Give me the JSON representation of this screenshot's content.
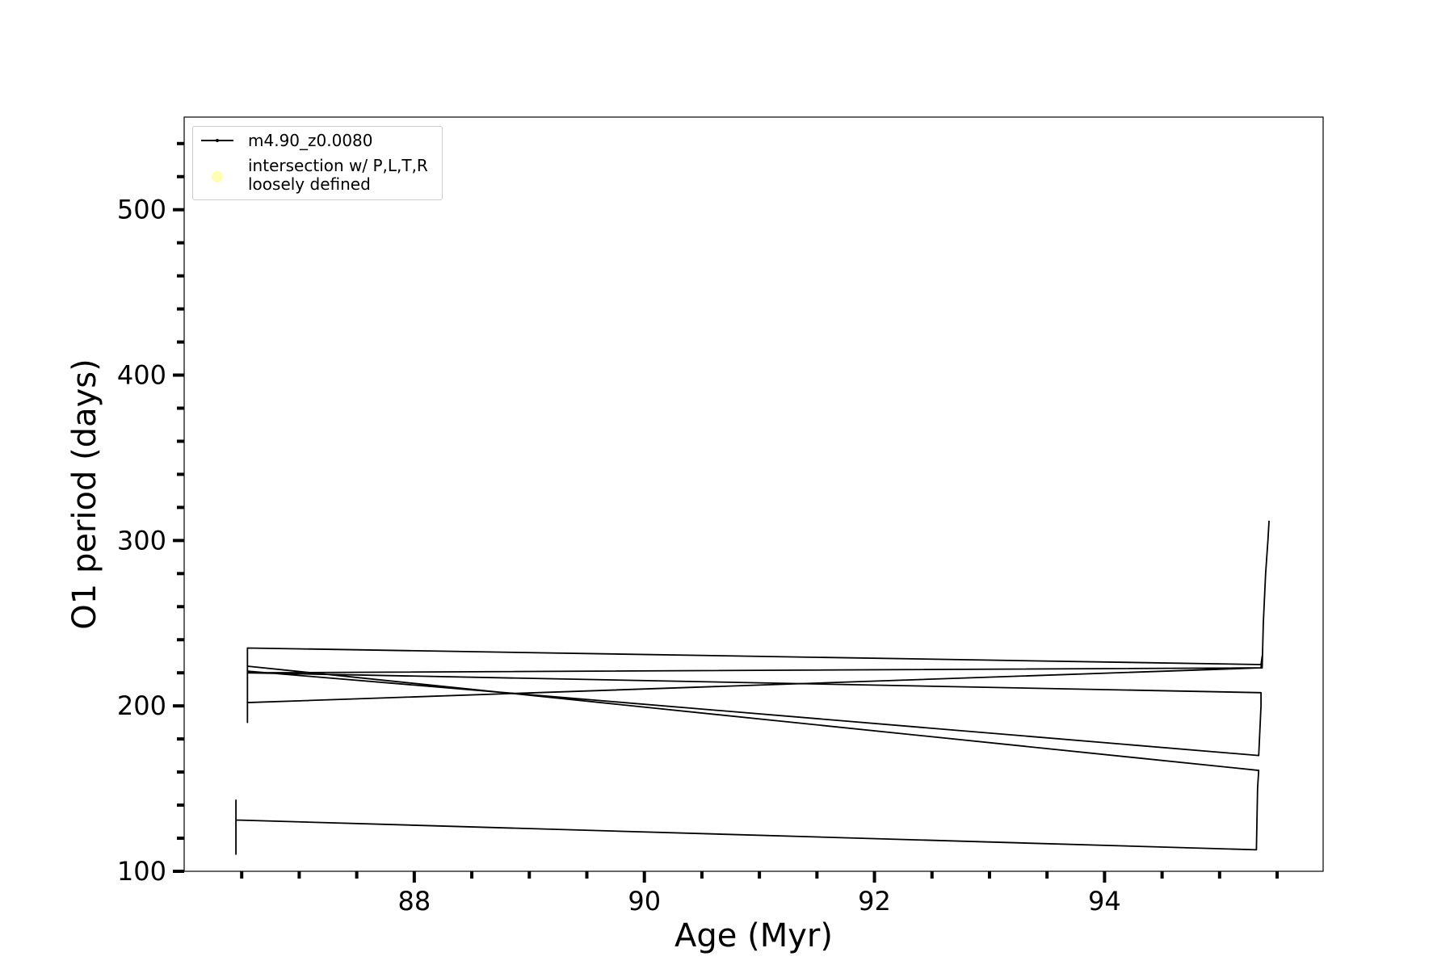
{
  "chart_data": {
    "type": "line",
    "x_label": "Age (Myr)",
    "y_label": "O1 period (days)",
    "xlim": [
      86.0,
      95.9
    ],
    "ylim": [
      100,
      556
    ],
    "xticks": [
      88,
      90,
      92,
      94
    ],
    "xticks_minor": [
      86.5,
      87,
      87.5,
      88.5,
      89,
      89.5,
      90.5,
      91,
      91.5,
      92.5,
      93,
      93.5,
      94.5,
      95,
      95.5
    ],
    "yticks": [
      100,
      200,
      300,
      400,
      500
    ],
    "yticks_minor": [
      120,
      140,
      160,
      180,
      220,
      240,
      260,
      280,
      320,
      340,
      360,
      380,
      420,
      440,
      460,
      480,
      520,
      540
    ],
    "legend": "upper left",
    "series": [
      {
        "name": "m4.90_z0.0080",
        "color": "#000000",
        "marker": "dot",
        "x": [
          86.45,
          86.45,
          86.45,
          95.32,
          95.33,
          95.34,
          86.55,
          86.55,
          86.55,
          95.34,
          95.36,
          95.36,
          86.55,
          86.55,
          86.55,
          95.36,
          95.37,
          95.36,
          86.55,
          86.55,
          86.55,
          95.37,
          95.38,
          95.4,
          95.42,
          95.43
        ],
        "values": [
          110,
          143,
          131,
          113,
          150,
          161,
          224,
          190,
          221,
          170,
          200,
          208,
          220,
          228,
          235,
          225,
          230,
          223,
          202,
          218,
          220,
          223,
          250,
          280,
          300,
          312
        ]
      },
      {
        "name": "intersection w/ P,L,T,R\nloosely defined",
        "color": "#ffffb3",
        "marker": "circle",
        "x": [],
        "values": []
      }
    ]
  }
}
